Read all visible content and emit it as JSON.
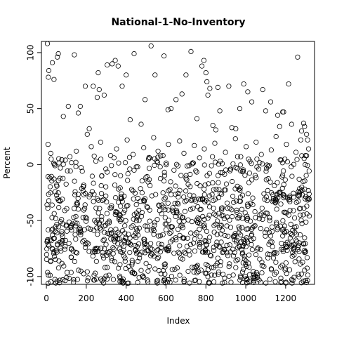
{
  "chart_data": {
    "type": "scatter",
    "title": "National-1-No-Inventory",
    "xlabel": "Index",
    "ylabel": "Percent",
    "xlim": [
      -25,
      1345
    ],
    "ylim": [
      -107,
      110
    ],
    "x_ticks": [
      0,
      200,
      400,
      600,
      800,
      1000,
      1200
    ],
    "x_tick_labels": [
      "0",
      "200",
      "400",
      "600",
      "800",
      "1000",
      "1200"
    ],
    "y_ticks": [
      -100,
      -50,
      0,
      50,
      100
    ],
    "y_tick_labels": [
      "-100",
      "-50",
      "0",
      "50",
      "100"
    ],
    "grid": false,
    "legend": "none",
    "marker": "open-circle",
    "n_points": 1320,
    "series": [
      {
        "points": [
          [
            5,
            108
          ],
          [
            10,
            78
          ],
          [
            12,
            84
          ],
          [
            30,
            91
          ],
          [
            38,
            76
          ],
          [
            55,
            96
          ],
          [
            60,
            99
          ],
          [
            85,
            43
          ],
          [
            110,
            52
          ],
          [
            140,
            98
          ],
          [
            160,
            46
          ],
          [
            170,
            52
          ],
          [
            195,
            70
          ],
          [
            205,
            27
          ],
          [
            215,
            32
          ],
          [
            235,
            70
          ],
          [
            255,
            60
          ],
          [
            260,
            82
          ],
          [
            265,
            67
          ],
          [
            290,
            62
          ],
          [
            305,
            89
          ],
          [
            330,
            90
          ],
          [
            345,
            93
          ],
          [
            360,
            88
          ],
          [
            380,
            70
          ],
          [
            400,
            80
          ],
          [
            420,
            40
          ],
          [
            440,
            99
          ],
          [
            475,
            36
          ],
          [
            495,
            58
          ],
          [
            525,
            106
          ],
          [
            545,
            80
          ],
          [
            590,
            97
          ],
          [
            610,
            49
          ],
          [
            625,
            50
          ],
          [
            650,
            58
          ],
          [
            680,
            63
          ],
          [
            700,
            80
          ],
          [
            725,
            101
          ],
          [
            755,
            41
          ],
          [
            780,
            88
          ],
          [
            790,
            93
          ],
          [
            800,
            82
          ],
          [
            805,
            74
          ],
          [
            810,
            62
          ],
          [
            820,
            68
          ],
          [
            835,
            35
          ],
          [
            850,
            31
          ],
          [
            860,
            69
          ],
          [
            870,
            48
          ],
          [
            915,
            70
          ],
          [
            930,
            33
          ],
          [
            950,
            32
          ],
          [
            970,
            50
          ],
          [
            990,
            72
          ],
          [
            1010,
            65
          ],
          [
            1030,
            56
          ],
          [
            1085,
            67
          ],
          [
            1100,
            48
          ],
          [
            1125,
            56
          ],
          [
            1160,
            44
          ],
          [
            1170,
            34
          ],
          [
            1185,
            47
          ],
          [
            1190,
            47
          ],
          [
            1215,
            72
          ],
          [
            1230,
            36
          ],
          [
            1260,
            96
          ],
          [
            1280,
            30
          ],
          [
            1290,
            37
          ],
          [
            1295,
            34
          ],
          [
            1305,
            27
          ],
          [
            1310,
            22
          ],
          [
            8,
            18
          ],
          [
            22,
            10
          ],
          [
            40,
            0
          ],
          [
            70,
            -3
          ],
          [
            95,
            4
          ],
          [
            118,
            7
          ],
          [
            150,
            12
          ],
          [
            180,
            -6
          ],
          [
            225,
            16
          ],
          [
            248,
            3
          ],
          [
            272,
            20
          ],
          [
            298,
            -4
          ],
          [
            322,
            8
          ],
          [
            352,
            14
          ],
          [
            372,
            -10
          ],
          [
            405,
            22
          ],
          [
            435,
            9
          ],
          [
            458,
            -2
          ],
          [
            488,
            15
          ],
          [
            512,
            5
          ],
          [
            538,
            24
          ],
          [
            560,
            12
          ],
          [
            585,
            8
          ],
          [
            612,
            18
          ],
          [
            640,
            -5
          ],
          [
            668,
            21
          ],
          [
            690,
            10
          ],
          [
            715,
            -1
          ],
          [
            742,
            17
          ],
          [
            768,
            6
          ],
          [
            792,
            14
          ],
          [
            818,
            -8
          ],
          [
            845,
            19
          ],
          [
            872,
            3
          ],
          [
            898,
            11
          ],
          [
            925,
            -4
          ],
          [
            948,
            23
          ],
          [
            975,
            7
          ],
          [
            1002,
            16
          ],
          [
            1028,
            1
          ],
          [
            1052,
            20
          ],
          [
            1078,
            9
          ],
          [
            1102,
            -6
          ],
          [
            1128,
            13
          ],
          [
            1152,
            25
          ],
          [
            1178,
            4
          ],
          [
            1204,
            18
          ],
          [
            1228,
            -2
          ],
          [
            1252,
            11
          ],
          [
            1276,
            22
          ],
          [
            1300,
            8
          ],
          [
            1315,
            14
          ]
        ]
      }
    ]
  }
}
